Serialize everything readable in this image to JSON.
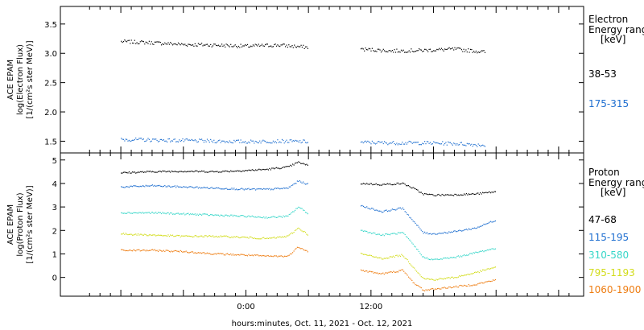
{
  "xlabel": "hours:minutes, Oct. 11, 2021 - Oct. 12, 2021",
  "x_ticks": [
    "0:00",
    "12:00"
  ],
  "chart_data": [
    {
      "type": "scatter",
      "panel": "electron",
      "ylabel": [
        "ACE EPAM",
        "log(Electron Flux)",
        "[1/(cm²s ster MeV)]"
      ],
      "ylim": [
        1.3,
        3.8
      ],
      "yticks": [
        "1.5",
        "2.0",
        "2.5",
        "3.0",
        "3.5"
      ],
      "legend_title": [
        "Electron",
        "Energy ranges",
        "[keV]"
      ],
      "series": [
        {
          "name": "38-53",
          "color": "#000000",
          "segments": [
            {
              "x": [
                -12,
                -9,
                -6,
                -3,
                0,
                3,
                6
              ],
              "y": [
                3.2,
                3.18,
                3.15,
                3.14,
                3.12,
                3.14,
                3.1
              ]
            },
            {
              "x": [
                11,
                14,
                17,
                20,
                23
              ],
              "y": [
                3.07,
                3.04,
                3.05,
                3.07,
                3.02
              ]
            }
          ]
        },
        {
          "name": "175-315",
          "color": "#1f6fd0",
          "segments": [
            {
              "x": [
                -12,
                -9,
                -6,
                -3,
                0,
                3,
                6
              ],
              "y": [
                1.53,
                1.52,
                1.51,
                1.5,
                1.49,
                1.5,
                1.49
              ]
            },
            {
              "x": [
                11,
                14,
                17,
                20,
                23
              ],
              "y": [
                1.48,
                1.47,
                1.47,
                1.46,
                1.43
              ]
            }
          ]
        }
      ]
    },
    {
      "type": "scatter",
      "panel": "proton",
      "ylabel": [
        "ACE EPAM",
        "log(Proton Flux)",
        "[1/(cm²s ster MeV)]"
      ],
      "ylim": [
        -0.8,
        5.3
      ],
      "yticks": [
        "0",
        "1",
        "2",
        "3",
        "4",
        "5"
      ],
      "legend_title": [
        "Proton",
        "Energy ranges",
        "[keV]"
      ],
      "series": [
        {
          "name": "47-68",
          "color": "#000000",
          "segments": [
            {
              "x": [
                -12,
                -9,
                -6,
                -3,
                0,
                2,
                4,
                5,
                6
              ],
              "y": [
                4.45,
                4.5,
                4.52,
                4.5,
                4.55,
                4.6,
                4.7,
                4.9,
                4.75
              ]
            },
            {
              "x": [
                11,
                13,
                15,
                16,
                17,
                18,
                20,
                22,
                24
              ],
              "y": [
                4.0,
                3.95,
                4.0,
                3.8,
                3.55,
                3.5,
                3.52,
                3.55,
                3.65
              ]
            }
          ]
        },
        {
          "name": "115-195",
          "color": "#1f6fd0",
          "segments": [
            {
              "x": [
                -12,
                -9,
                -6,
                -3,
                0,
                2,
                4,
                5,
                6
              ],
              "y": [
                3.85,
                3.9,
                3.85,
                3.8,
                3.75,
                3.75,
                3.8,
                4.1,
                3.95
              ]
            },
            {
              "x": [
                11,
                13,
                15,
                16,
                17,
                18,
                20,
                22,
                24
              ],
              "y": [
                3.05,
                2.8,
                2.95,
                2.4,
                1.9,
                1.85,
                1.95,
                2.1,
                2.45
              ]
            }
          ]
        },
        {
          "name": "310-580",
          "color": "#36d6c8",
          "segments": [
            {
              "x": [
                -12,
                -9,
                -6,
                -3,
                0,
                2,
                4,
                5,
                6
              ],
              "y": [
                2.75,
                2.75,
                2.7,
                2.65,
                2.6,
                2.55,
                2.6,
                3.0,
                2.7
              ]
            },
            {
              "x": [
                11,
                13,
                15,
                16,
                17,
                18,
                20,
                22,
                24
              ],
              "y": [
                2.0,
                1.8,
                1.9,
                1.4,
                0.85,
                0.75,
                0.85,
                1.05,
                1.25
              ]
            }
          ]
        },
        {
          "name": "795-1193",
          "color": "#d2dc1a",
          "segments": [
            {
              "x": [
                -12,
                -9,
                -6,
                -3,
                0,
                2,
                4,
                5,
                6
              ],
              "y": [
                1.85,
                1.8,
                1.75,
                1.75,
                1.7,
                1.65,
                1.75,
                2.1,
                1.8
              ]
            },
            {
              "x": [
                11,
                13,
                15,
                16,
                17,
                18,
                20,
                22,
                24
              ],
              "y": [
                1.0,
                0.8,
                0.95,
                0.45,
                -0.05,
                -0.1,
                0.0,
                0.2,
                0.45
              ]
            }
          ]
        },
        {
          "name": "1060-1900",
          "color": "#ee7d12",
          "segments": [
            {
              "x": [
                -12,
                -9,
                -6,
                -3,
                0,
                2,
                4,
                5,
                6
              ],
              "y": [
                1.15,
                1.15,
                1.1,
                1.0,
                0.95,
                0.9,
                0.9,
                1.3,
                1.1
              ]
            },
            {
              "x": [
                11,
                13,
                15,
                16,
                17,
                18,
                20,
                22,
                24
              ],
              "y": [
                0.3,
                0.15,
                0.3,
                -0.2,
                -0.55,
                -0.5,
                -0.4,
                -0.3,
                -0.1
              ]
            }
          ]
        }
      ]
    }
  ]
}
